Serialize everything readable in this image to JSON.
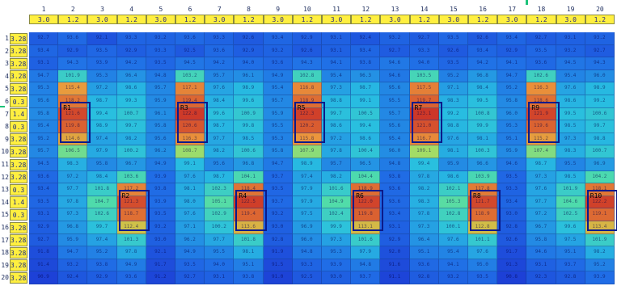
{
  "columns": [
    "1",
    "2",
    "3",
    "4",
    "5",
    "6",
    "7",
    "8",
    "9",
    "10",
    "11",
    "12",
    "13",
    "14",
    "15",
    "16",
    "17",
    "18",
    "19",
    "20"
  ],
  "column_settings": [
    "3.0",
    "1.2",
    "3.0",
    "1.2",
    "3.0",
    "1.2",
    "3.0",
    "1.2",
    "3.0",
    "1.2",
    "3.0",
    "1.2",
    "3.0",
    "1.2",
    "3.0",
    "1.2",
    "3.0",
    "1.2",
    "3.0",
    "1.2"
  ],
  "rows": [
    {
      "n": "1",
      "v": "3.2857"
    },
    {
      "n": "2",
      "v": "3.2857"
    },
    {
      "n": "3",
      "v": "3.2857"
    },
    {
      "n": "4",
      "v": "3.2857"
    },
    {
      "n": "5",
      "v": "3.2857"
    },
    {
      "n": "6",
      "v": "0.3"
    },
    {
      "n": "7",
      "v": "1.4"
    },
    {
      "n": "8",
      "v": "0.3"
    },
    {
      "n": "9",
      "v": "3.2857"
    },
    {
      "n": "10",
      "v": "3.2857"
    },
    {
      "n": "11",
      "v": "3.2857"
    },
    {
      "n": "12",
      "v": "3.2857"
    },
    {
      "n": "13",
      "v": "0.3"
    },
    {
      "n": "14",
      "v": "1.4"
    },
    {
      "n": "15",
      "v": "0.3"
    },
    {
      "n": "16",
      "v": "3.2857"
    },
    {
      "n": "17",
      "v": "3.2857"
    },
    {
      "n": "18",
      "v": "3.2857"
    },
    {
      "n": "19",
      "v": "3.2857"
    },
    {
      "n": "20",
      "v": "3.2857"
    }
  ],
  "cell_values": [
    [
      "92.7",
      "93.6",
      "92.1",
      "93.3",
      "93.2",
      "93.6",
      "93.3",
      "92.6",
      "93.4",
      "92.9",
      "93.1",
      "92.4",
      "93.2",
      "92.7",
      "93.5",
      "92.6",
      "93.4",
      "92.7",
      "93.1",
      "93.2"
    ],
    [
      "93.4",
      "92.9",
      "93.5",
      "92.9",
      "93.3",
      "92.5",
      "93.6",
      "92.9",
      "93.2",
      "92.6",
      "93.1",
      "93.4",
      "92.7",
      "93.3",
      "92.6",
      "93.4",
      "92.9",
      "93.5",
      "93.2",
      "92.7"
    ],
    [
      "93.1",
      "94.3",
      "93.9",
      "94.2",
      "93.5",
      "94.5",
      "94.2",
      "94.0",
      "93.6",
      "94.3",
      "94.1",
      "93.8",
      "94.6",
      "94.0",
      "93.5",
      "94.2",
      "94.1",
      "93.6",
      "94.5",
      "94.3"
    ],
    [
      "94.7",
      "101.9",
      "95.3",
      "96.4",
      "94.8",
      "103.2",
      "95.7",
      "96.1",
      "94.9",
      "102.8",
      "95.4",
      "96.3",
      "94.6",
      "103.5",
      "95.2",
      "96.8",
      "94.7",
      "102.6",
      "95.4",
      "96.0"
    ],
    [
      "95.3",
      "115.4",
      "97.2",
      "98.6",
      "95.7",
      "117.1",
      "97.6",
      "98.9",
      "95.4",
      "116.8",
      "97.3",
      "98.7",
      "95.6",
      "117.5",
      "97.1",
      "98.4",
      "95.2",
      "116.3",
      "97.6",
      "98.9"
    ],
    [
      "95.6",
      "118.2",
      "98.7",
      "99.3",
      "95.9",
      "119.4",
      "98.4",
      "99.6",
      "95.7",
      "118.9",
      "98.8",
      "99.1",
      "95.5",
      "119.7",
      "98.3",
      "99.5",
      "95.8",
      "118.6",
      "98.6",
      "99.2"
    ],
    [
      "95.8",
      "121.6",
      "99.4",
      "100.7",
      "96.1",
      "122.8",
      "99.6",
      "100.9",
      "95.9",
      "122.3",
      "99.7",
      "100.5",
      "95.7",
      "123.1",
      "99.2",
      "100.8",
      "96.0",
      "121.9",
      "99.5",
      "100.6"
    ],
    [
      "95.4",
      "119.8",
      "98.9",
      "99.7",
      "95.8",
      "120.6",
      "98.7",
      "99.8",
      "95.5",
      "120.2",
      "98.6",
      "99.4",
      "95.6",
      "121.0",
      "98.8",
      "99.9",
      "95.3",
      "119.6",
      "98.5",
      "99.7"
    ],
    [
      "95.2",
      "114.6",
      "97.4",
      "98.2",
      "95.6",
      "116.3",
      "97.7",
      "98.5",
      "95.3",
      "115.8",
      "97.2",
      "98.6",
      "95.4",
      "116.7",
      "97.6",
      "98.1",
      "95.1",
      "115.2",
      "97.3",
      "98.8"
    ],
    [
      "95.7",
      "106.5",
      "97.9",
      "100.2",
      "96.2",
      "108.7",
      "98.2",
      "100.6",
      "95.8",
      "107.9",
      "97.8",
      "100.4",
      "96.0",
      "109.1",
      "98.1",
      "100.3",
      "95.9",
      "107.4",
      "98.3",
      "100.7"
    ],
    [
      "94.5",
      "98.3",
      "95.8",
      "96.7",
      "94.9",
      "99.1",
      "95.6",
      "96.8",
      "94.7",
      "98.9",
      "95.7",
      "96.5",
      "94.8",
      "99.4",
      "95.9",
      "96.6",
      "94.6",
      "98.7",
      "95.5",
      "96.9"
    ],
    [
      "93.6",
      "97.2",
      "98.4",
      "103.6",
      "93.9",
      "97.6",
      "98.7",
      "104.1",
      "93.7",
      "97.4",
      "98.2",
      "104.4",
      "93.8",
      "97.8",
      "98.6",
      "103.9",
      "93.5",
      "97.3",
      "98.5",
      "104.2"
    ],
    [
      "93.4",
      "97.7",
      "101.8",
      "117.2",
      "93.8",
      "98.1",
      "102.3",
      "118.4",
      "93.5",
      "97.9",
      "101.6",
      "118.9",
      "93.6",
      "98.2",
      "102.1",
      "117.8",
      "93.3",
      "97.6",
      "101.9",
      "118.1"
    ],
    [
      "93.5",
      "97.8",
      "104.7",
      "121.3",
      "93.9",
      "98.0",
      "105.1",
      "122.5",
      "93.7",
      "97.9",
      "104.9",
      "122.0",
      "93.6",
      "98.3",
      "105.3",
      "121.7",
      "93.4",
      "97.7",
      "104.6",
      "122.2"
    ],
    [
      "93.1",
      "97.3",
      "102.6",
      "118.7",
      "93.5",
      "97.6",
      "102.9",
      "119.4",
      "93.2",
      "97.5",
      "102.4",
      "119.8",
      "93.4",
      "97.8",
      "102.8",
      "118.9",
      "93.0",
      "97.2",
      "102.5",
      "119.1"
    ],
    [
      "92.9",
      "96.8",
      "99.7",
      "112.4",
      "93.2",
      "97.1",
      "100.2",
      "113.6",
      "93.0",
      "96.9",
      "99.9",
      "113.1",
      "93.1",
      "97.3",
      "100.1",
      "112.8",
      "92.8",
      "96.7",
      "99.6",
      "113.4"
    ],
    [
      "92.7",
      "95.9",
      "97.4",
      "101.3",
      "93.0",
      "96.2",
      "97.7",
      "101.8",
      "92.8",
      "96.0",
      "97.3",
      "101.6",
      "92.9",
      "96.4",
      "97.6",
      "101.1",
      "92.6",
      "95.8",
      "97.5",
      "101.9"
    ],
    [
      "91.8",
      "94.7",
      "95.2",
      "97.8",
      "92.1",
      "94.9",
      "95.5",
      "98.1",
      "91.9",
      "94.8",
      "95.3",
      "97.9",
      "92.0",
      "95.1",
      "95.4",
      "97.6",
      "91.7",
      "94.6",
      "95.1",
      "98.2"
    ],
    [
      "91.4",
      "93.2",
      "93.8",
      "94.9",
      "91.7",
      "93.5",
      "94.0",
      "95.1",
      "91.5",
      "93.3",
      "93.9",
      "94.8",
      "91.6",
      "93.6",
      "94.1",
      "95.0",
      "91.3",
      "93.1",
      "93.7",
      "95.2"
    ],
    [
      "90.9",
      "92.4",
      "92.9",
      "93.6",
      "91.2",
      "92.7",
      "93.1",
      "93.8",
      "91.0",
      "92.5",
      "93.0",
      "93.7",
      "91.1",
      "92.8",
      "93.2",
      "93.5",
      "90.8",
      "92.3",
      "92.8",
      "93.9"
    ]
  ],
  "regions": [
    {
      "label": "R1",
      "col": 2,
      "row": 6
    },
    {
      "label": "R3",
      "col": 6,
      "row": 6
    },
    {
      "label": "R5",
      "col": 10,
      "row": 6
    },
    {
      "label": "R7",
      "col": 14,
      "row": 6
    },
    {
      "label": "R9",
      "col": 18,
      "row": 6
    },
    {
      "label": "R2",
      "col": 4,
      "row": 13
    },
    {
      "label": "R4",
      "col": 8,
      "row": 13
    },
    {
      "label": "R6",
      "col": 12,
      "row": 13
    },
    {
      "label": "R8",
      "col": 16,
      "row": 13
    },
    {
      "label": "R10",
      "col": 20,
      "row": 13
    }
  ],
  "colors": {
    "heat_low": "#1e3cd6",
    "heat_mid": "#2bd6d0",
    "heat_high": "#d23a2a",
    "setting_bg": "#ffef40",
    "roi_border": "#0b1a8a",
    "marker": "#1ec37a"
  }
}
